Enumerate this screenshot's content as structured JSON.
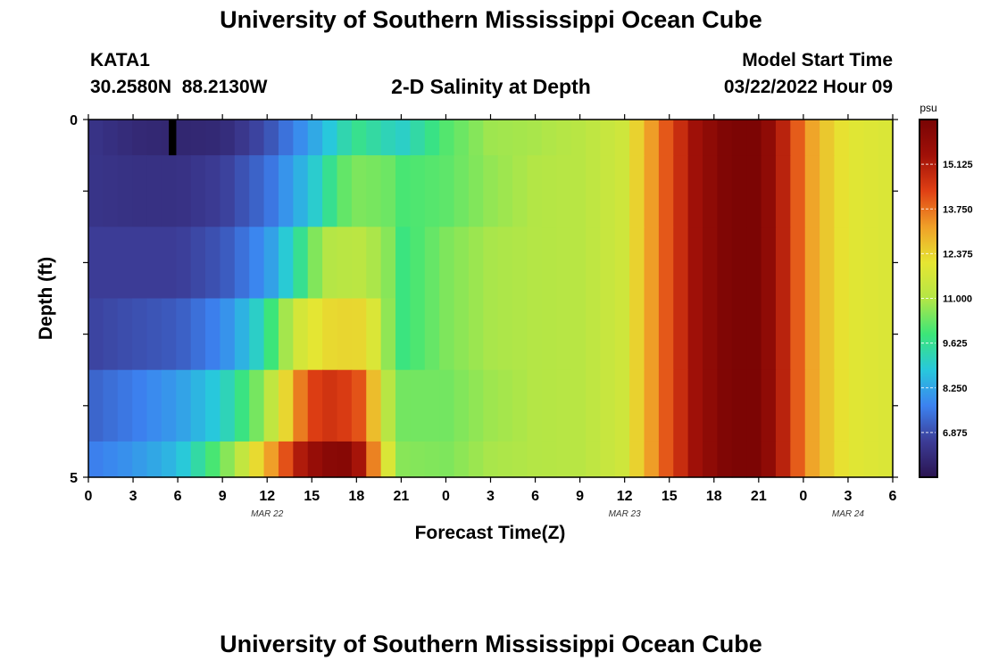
{
  "header": {
    "title": "University of Southern Mississippi Ocean Cube",
    "station_id": "KATA1",
    "coordinates": "30.2580N  88.2130W",
    "plot_title": "2-D Salinity at Depth",
    "start_time_label": "Model Start Time",
    "start_time_value": "03/22/2022 Hour 09"
  },
  "footer": {
    "title": "University of Southern Mississippi Ocean Cube"
  },
  "chart_data": {
    "type": "heatmap",
    "title": "2-D Salinity at Depth",
    "xlabel": "Forecast Time(Z)",
    "ylabel": "Depth (ft)",
    "x_tick_labels": [
      "0",
      "3",
      "6",
      "9",
      "12",
      "15",
      "18",
      "21",
      "0",
      "3",
      "6",
      "9",
      "12",
      "15",
      "18",
      "21",
      "0",
      "3",
      "6"
    ],
    "x_date_labels": [
      {
        "label": "MAR 22",
        "tick_index": 4
      },
      {
        "label": "MAR 23",
        "tick_index": 12
      },
      {
        "label": "MAR 24",
        "tick_index": 17
      }
    ],
    "y_tick_labels": [
      "0",
      "5"
    ],
    "ylim": [
      0,
      5
    ],
    "colorbar": {
      "unit": "psu",
      "ticks": [
        "15.125",
        "13.750",
        "12.375",
        "11.000",
        "9.625",
        "8.250",
        "6.875"
      ],
      "range": [
        5.5,
        16.5
      ],
      "colors": [
        "#2a1450",
        "#3c3c96",
        "#3c82f0",
        "#28c8dc",
        "#3ce678",
        "#b4e646",
        "#e6e632",
        "#f0a028",
        "#e04014",
        "#a01008",
        "#780404"
      ]
    },
    "hours_columns": 55,
    "hour_step": 1,
    "missing": [
      {
        "layer": 0,
        "x_start_hour": 5.4,
        "x_end_hour": 5.9
      }
    ],
    "layers": [
      {
        "depth_top": 0,
        "depth_bottom": 0.5,
        "keyframes": [
          [
            0,
            6.4
          ],
          [
            3,
            6.1
          ],
          [
            6,
            6.0
          ],
          [
            9,
            6.1
          ],
          [
            12,
            6.9
          ],
          [
            15,
            8.2
          ],
          [
            18,
            9.7
          ],
          [
            21,
            9.0
          ],
          [
            24,
            10.1
          ],
          [
            27,
            10.8
          ],
          [
            30,
            10.9
          ],
          [
            33,
            11.1
          ],
          [
            36,
            11.6
          ],
          [
            37,
            12.6
          ],
          [
            39,
            14.2
          ],
          [
            41,
            15.6
          ],
          [
            43,
            16.4
          ],
          [
            45,
            16.4
          ],
          [
            46,
            15.6
          ],
          [
            47,
            14.6
          ],
          [
            48,
            13.6
          ],
          [
            49,
            12.8
          ],
          [
            51,
            12.0
          ],
          [
            54,
            11.8
          ]
        ]
      },
      {
        "depth_top": 0.5,
        "depth_bottom": 1.5,
        "keyframes": [
          [
            0,
            6.4
          ],
          [
            3,
            6.3
          ],
          [
            6,
            6.3
          ],
          [
            9,
            6.6
          ],
          [
            12,
            7.4
          ],
          [
            15,
            8.8
          ],
          [
            17,
            10.2
          ],
          [
            18,
            10.5
          ],
          [
            20,
            10.4
          ],
          [
            21,
            10.0
          ],
          [
            24,
            10.2
          ],
          [
            27,
            10.7
          ],
          [
            30,
            11.0
          ],
          [
            33,
            11.1
          ],
          [
            36,
            11.6
          ],
          [
            37,
            12.6
          ],
          [
            39,
            14.2
          ],
          [
            41,
            15.6
          ],
          [
            43,
            16.4
          ],
          [
            45,
            16.4
          ],
          [
            46,
            15.6
          ],
          [
            47,
            14.6
          ],
          [
            48,
            13.6
          ],
          [
            49,
            12.8
          ],
          [
            51,
            12.0
          ],
          [
            54,
            11.8
          ]
        ]
      },
      {
        "depth_top": 1.5,
        "depth_bottom": 2.5,
        "keyframes": [
          [
            0,
            6.6
          ],
          [
            3,
            6.6
          ],
          [
            6,
            6.6
          ],
          [
            9,
            7.0
          ],
          [
            12,
            8.0
          ],
          [
            14,
            9.4
          ],
          [
            15,
            10.4
          ],
          [
            16,
            11.0
          ],
          [
            18,
            11.2
          ],
          [
            20,
            10.7
          ],
          [
            21,
            9.8
          ],
          [
            24,
            10.5
          ],
          [
            27,
            10.9
          ],
          [
            30,
            11.0
          ],
          [
            33,
            11.1
          ],
          [
            36,
            11.6
          ],
          [
            37,
            12.6
          ],
          [
            39,
            14.2
          ],
          [
            41,
            15.6
          ],
          [
            43,
            16.4
          ],
          [
            45,
            16.4
          ],
          [
            46,
            15.6
          ],
          [
            47,
            14.6
          ],
          [
            48,
            13.6
          ],
          [
            49,
            12.8
          ],
          [
            51,
            12.0
          ],
          [
            54,
            11.8
          ]
        ]
      },
      {
        "depth_top": 2.5,
        "depth_bottom": 3.5,
        "keyframes": [
          [
            0,
            6.7
          ],
          [
            3,
            6.9
          ],
          [
            6,
            7.1
          ],
          [
            9,
            7.8
          ],
          [
            11,
            8.8
          ],
          [
            12,
            9.6
          ],
          [
            13,
            10.6
          ],
          [
            14,
            11.6
          ],
          [
            15,
            12.0
          ],
          [
            16,
            12.3
          ],
          [
            18,
            12.4
          ],
          [
            19,
            12.0
          ],
          [
            20,
            10.8
          ],
          [
            21,
            9.8
          ],
          [
            24,
            10.5
          ],
          [
            27,
            10.9
          ],
          [
            30,
            11.0
          ],
          [
            33,
            11.1
          ],
          [
            36,
            11.6
          ],
          [
            37,
            12.6
          ],
          [
            39,
            14.2
          ],
          [
            41,
            15.6
          ],
          [
            43,
            16.4
          ],
          [
            45,
            16.4
          ],
          [
            46,
            15.6
          ],
          [
            47,
            14.6
          ],
          [
            48,
            13.6
          ],
          [
            49,
            12.8
          ],
          [
            51,
            12.0
          ],
          [
            54,
            11.8
          ]
        ]
      },
      {
        "depth_top": 3.5,
        "depth_bottom": 4.5,
        "keyframes": [
          [
            0,
            7.2
          ],
          [
            3,
            7.6
          ],
          [
            6,
            8.1
          ],
          [
            9,
            9.0
          ],
          [
            11,
            10.2
          ],
          [
            12,
            11.0
          ],
          [
            13,
            12.0
          ],
          [
            14,
            13.4
          ],
          [
            15,
            14.3
          ],
          [
            16,
            14.6
          ],
          [
            18,
            14.3
          ],
          [
            19,
            13.0
          ],
          [
            20,
            11.2
          ],
          [
            21,
            10.4
          ],
          [
            24,
            10.4
          ],
          [
            27,
            10.8
          ],
          [
            30,
            11.0
          ],
          [
            33,
            11.1
          ],
          [
            36,
            11.6
          ],
          [
            37,
            12.6
          ],
          [
            39,
            14.2
          ],
          [
            41,
            15.6
          ],
          [
            43,
            16.4
          ],
          [
            45,
            16.4
          ],
          [
            46,
            15.6
          ],
          [
            47,
            14.6
          ],
          [
            48,
            13.6
          ],
          [
            49,
            12.8
          ],
          [
            51,
            12.0
          ],
          [
            54,
            11.8
          ]
        ]
      },
      {
        "depth_top": 4.5,
        "depth_bottom": 5,
        "keyframes": [
          [
            0,
            7.6
          ],
          [
            3,
            8.0
          ],
          [
            6,
            8.6
          ],
          [
            8,
            9.8
          ],
          [
            10,
            11.0
          ],
          [
            11,
            12.0
          ],
          [
            12,
            13.0
          ],
          [
            13,
            13.8
          ],
          [
            14,
            15.0
          ],
          [
            15,
            15.6
          ],
          [
            16,
            16.0
          ],
          [
            17,
            16.2
          ],
          [
            18,
            15.6
          ],
          [
            19,
            13.8
          ],
          [
            20,
            12.0
          ],
          [
            21,
            10.6
          ],
          [
            24,
            10.5
          ],
          [
            27,
            10.9
          ],
          [
            30,
            11.0
          ],
          [
            33,
            11.1
          ],
          [
            36,
            11.6
          ],
          [
            37,
            12.6
          ],
          [
            39,
            14.2
          ],
          [
            41,
            15.6
          ],
          [
            43,
            16.4
          ],
          [
            45,
            16.4
          ],
          [
            46,
            15.6
          ],
          [
            47,
            14.6
          ],
          [
            48,
            13.6
          ],
          [
            49,
            12.8
          ],
          [
            51,
            12.0
          ],
          [
            54,
            11.8
          ]
        ]
      }
    ]
  }
}
